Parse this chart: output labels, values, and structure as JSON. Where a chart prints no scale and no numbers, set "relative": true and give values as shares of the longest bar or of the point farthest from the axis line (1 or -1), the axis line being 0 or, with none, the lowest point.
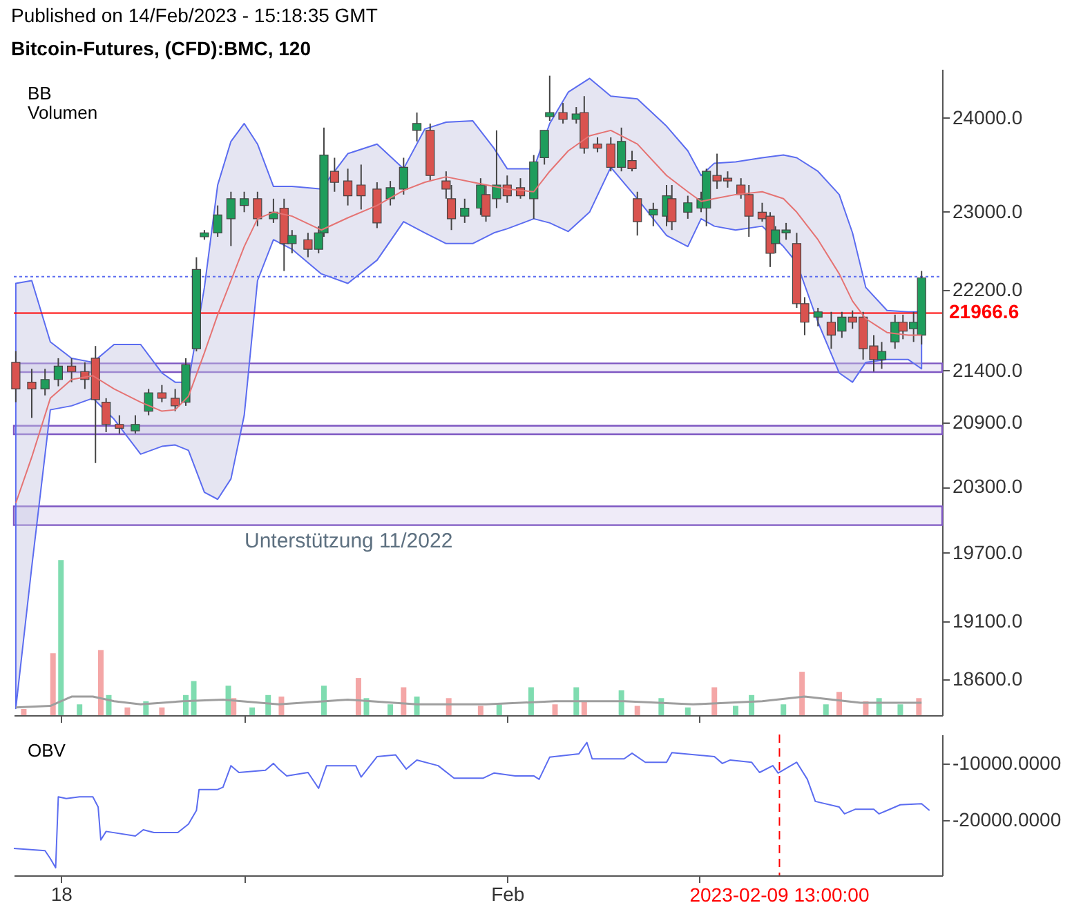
{
  "chart_data": [
    {
      "type": "candlestick",
      "title": "Bitcoin-Futures, (CFD):BMC, 120",
      "subtitle": "Published on 14/Feb/2023 - 15:18:35 GMT",
      "annotations": [
        "BB"
      ],
      "x": [
        "2023-01-16T14:00",
        "2023-01-17T02:00",
        "2023-01-17T12:00",
        "2023-01-17T22:00",
        "2023-01-18T08:00",
        "2023-01-18T18:00",
        "2023-01-19T02:00",
        "2023-01-19T10:00",
        "2023-01-19T20:00",
        "2023-01-20T08:00",
        "2023-01-20T18:00",
        "2023-01-21T04:00",
        "2023-01-21T14:00",
        "2023-01-21T22:00",
        "2023-01-22T06:00",
        "2023-01-22T12:00",
        "2023-01-22T22:00",
        "2023-01-23T08:00",
        "2023-01-23T18:00",
        "2023-01-24T04:00",
        "2023-01-24T16:00",
        "2023-01-25T00:00",
        "2023-01-25T06:00",
        "2023-01-25T18:00",
        "2023-01-26T02:00",
        "2023-01-26T06:00",
        "2023-01-26T14:00",
        "2023-01-27T00:00",
        "2023-01-27T10:00",
        "2023-01-27T22:00",
        "2023-01-28T08:00",
        "2023-01-28T18:00",
        "2023-01-29T04:00",
        "2023-01-29T14:00",
        "2023-01-30T02:00",
        "2023-01-30T06:00",
        "2023-01-30T16:00",
        "2023-01-31T04:00",
        "2023-01-31T08:00",
        "2023-01-31T16:00",
        "2023-02-01T00:00",
        "2023-02-01T10:00",
        "2023-02-01T20:00",
        "2023-02-02T04:00",
        "2023-02-02T08:00",
        "2023-02-02T18:00",
        "2023-02-03T04:00",
        "2023-02-03T10:00",
        "2023-02-03T20:00",
        "2023-02-04T06:00",
        "2023-02-04T14:00",
        "2023-02-04T22:00",
        "2023-02-05T02:00",
        "2023-02-05T14:00",
        "2023-02-06T00:00",
        "2023-02-06T04:00",
        "2023-02-06T16:00",
        "2023-02-07T02:00",
        "2023-02-07T06:00",
        "2023-02-07T14:00",
        "2023-02-07T22:00",
        "2023-02-08T08:00",
        "2023-02-08T14:00",
        "2023-02-09T00:00",
        "2023-02-09T06:00",
        "2023-02-09T10:00",
        "2023-02-09T18:00",
        "2023-02-10T02:00",
        "2023-02-10T08:00",
        "2023-02-10T18:00",
        "2023-02-11T04:00",
        "2023-02-11T12:00",
        "2023-02-11T20:00",
        "2023-02-12T04:00",
        "2023-02-12T12:00",
        "2023-02-12T18:00",
        "2023-02-13T04:00",
        "2023-02-13T10:00",
        "2023-02-13T18:00",
        "2023-02-14T00:00"
      ],
      "ohlc": [
        [
          21480,
          21590,
          21095,
          21222
        ],
        [
          21287,
          21417,
          20945,
          21222
        ],
        [
          21222,
          21417,
          21160,
          21313
        ],
        [
          21313,
          21520,
          21248,
          21443
        ],
        [
          21443,
          21520,
          21287,
          21390
        ],
        [
          21390,
          21480,
          21222,
          21313
        ],
        [
          21520,
          21640,
          20520,
          21120
        ],
        [
          21095,
          21133,
          20810,
          20883
        ],
        [
          20883,
          20970,
          20797,
          20846
        ],
        [
          20822,
          20970,
          20797,
          20883
        ],
        [
          21009,
          21222,
          20970,
          21185
        ],
        [
          21185,
          21260,
          21095,
          21133
        ],
        [
          21133,
          21222,
          21009,
          21060
        ],
        [
          21095,
          21520,
          21060,
          21456
        ],
        [
          21613,
          22530,
          21587,
          22405
        ],
        [
          22740,
          22810,
          22710,
          22781
        ],
        [
          22781,
          23066,
          22740,
          22967
        ],
        [
          22927,
          23210,
          22645,
          23137
        ],
        [
          23066,
          23210,
          22996,
          23137
        ],
        [
          23137,
          23210,
          22850,
          22927
        ],
        [
          22927,
          23137,
          22884,
          22996
        ],
        [
          23038,
          23137,
          22390,
          22670
        ],
        [
          22670,
          22810,
          22570,
          22753
        ],
        [
          22710,
          22781,
          22530,
          22612
        ],
        [
          22612,
          22850,
          22570,
          22781
        ],
        [
          22781,
          23896,
          22740,
          23600
        ],
        [
          23426,
          23571,
          23210,
          23310
        ],
        [
          23324,
          23454,
          23066,
          23168
        ],
        [
          23281,
          23498,
          23024,
          23168
        ],
        [
          23239,
          23310,
          22830,
          22884
        ],
        [
          23137,
          23324,
          23066,
          23253
        ],
        [
          23239,
          23571,
          23180,
          23469
        ],
        [
          23866,
          24060,
          23747,
          23940
        ],
        [
          23866,
          23940,
          23324,
          23382
        ],
        [
          23324,
          23426,
          23137,
          23239
        ],
        [
          23137,
          23281,
          22810,
          22927
        ],
        [
          22954,
          23137,
          22884,
          23038
        ],
        [
          23038,
          23353,
          22967,
          23281
        ],
        [
          23180,
          23281,
          22897,
          22954
        ],
        [
          23137,
          23866,
          23038,
          23281
        ],
        [
          23281,
          23382,
          23094,
          23168
        ],
        [
          23253,
          23353,
          23137,
          23168
        ],
        [
          23137,
          23600,
          22927,
          23527
        ],
        [
          23571,
          23866,
          23498,
          23866
        ],
        [
          24015,
          24466,
          23970,
          24060
        ],
        [
          24060,
          24165,
          23940,
          23985
        ],
        [
          23985,
          24120,
          23940,
          24045
        ],
        [
          24060,
          24240,
          23615,
          23674
        ],
        [
          23718,
          23790,
          23630,
          23674
        ],
        [
          23718,
          23790,
          23426,
          23469
        ],
        [
          23469,
          23896,
          23426,
          23747
        ],
        [
          23541,
          23645,
          23426,
          23454
        ],
        [
          23137,
          23210,
          22753,
          22897
        ],
        [
          22967,
          23094,
          22850,
          23024
        ],
        [
          22954,
          23281,
          22850,
          23168
        ],
        [
          23137,
          23281,
          22810,
          22897
        ],
        [
          22996,
          23168,
          22927,
          23094
        ],
        [
          23038,
          23210,
          22996,
          23137
        ],
        [
          23038,
          23454,
          22850,
          23426
        ],
        [
          23382,
          23615,
          23239,
          23324
        ],
        [
          23353,
          23426,
          23253,
          23324
        ],
        [
          23281,
          23353,
          23137,
          23180
        ],
        [
          23180,
          23281,
          22740,
          22954
        ],
        [
          22996,
          23094,
          22897,
          22927
        ],
        [
          22954,
          22996,
          22430,
          22570
        ],
        [
          22670,
          22850,
          22570,
          22810
        ],
        [
          22781,
          22884,
          22710,
          22810
        ],
        [
          22670,
          22781,
          22018,
          22060
        ],
        [
          22060,
          22125,
          21747,
          21875
        ],
        [
          21925,
          22018,
          21835,
          21978
        ],
        [
          21875,
          21978,
          21613,
          21747
        ],
        [
          21787,
          21978,
          21720,
          21925
        ],
        [
          21925,
          21992,
          21810,
          21875
        ],
        [
          21925,
          21978,
          21507,
          21613
        ],
        [
          21640,
          21747,
          21390,
          21507
        ],
        [
          21507,
          21680,
          21417,
          21587
        ],
        [
          21680,
          21950,
          21613,
          21875
        ],
        [
          21875,
          21950,
          21707,
          21787
        ],
        [
          21810,
          21978,
          21680,
          21875
        ],
        [
          21747,
          22390,
          21655,
          22320
        ]
      ],
      "series": [
        {
          "type": "line",
          "color": "#e57373",
          "x": [
            "2023-01-16T14:00",
            "2023-01-17T02:00",
            "2023-01-17T16:00",
            "2023-01-18T08:00",
            "2023-01-19T00:00",
            "2023-01-19T16:00",
            "2023-01-20T12:00",
            "2023-01-21T04:00",
            "2023-01-21T14:00",
            "2023-01-22T00:00",
            "2023-01-22T12:00",
            "2023-01-22T22:00",
            "2023-01-23T08:00",
            "2023-01-23T18:00",
            "2023-01-24T04:00",
            "2023-01-24T16:00",
            "2023-01-25T06:00",
            "2023-01-26T04:00",
            "2023-01-27T00:00",
            "2023-01-27T22:00",
            "2023-01-28T18:00",
            "2023-01-29T10:00",
            "2023-01-30T02:00",
            "2023-01-30T22:00",
            "2023-01-31T14:00",
            "2023-02-01T00:00",
            "2023-02-01T20:00",
            "2023-02-02T08:00",
            "2023-02-02T22:00",
            "2023-02-03T14:00",
            "2023-02-04T06:00",
            "2023-02-05T02:00",
            "2023-02-06T00:00",
            "2023-02-06T16:00",
            "2023-02-07T02:00",
            "2023-02-07T12:00",
            "2023-02-08T04:00",
            "2023-02-09T00:00",
            "2023-02-09T16:00",
            "2023-02-10T02:00",
            "2023-02-10T18:00",
            "2023-02-11T10:00",
            "2023-02-11T20:00",
            "2023-02-12T06:00",
            "2023-02-12T22:00",
            "2023-02-13T14:00",
            "2023-02-14T00:00"
          ],
          "values": [
            20150,
            20575,
            21133,
            21313,
            21350,
            21222,
            21095,
            21009,
            21022,
            21151,
            21573,
            21950,
            22292,
            22640,
            22927,
            22996,
            22954,
            22810,
            22937,
            23066,
            23224,
            23310,
            23368,
            23310,
            23266,
            23239,
            23210,
            23426,
            23645,
            23807,
            23866,
            23718,
            23382,
            23210,
            23108,
            23137,
            23180,
            23210,
            23137,
            22996,
            22710,
            22361,
            22086,
            21909,
            21773,
            21747,
            21747
          ],
          "upper": [
            22264,
            22292,
            21680,
            21520,
            21480,
            21655,
            21655,
            21377,
            21287,
            21287,
            22223,
            23281,
            23747,
            23940,
            23718,
            23266,
            23266,
            23239,
            23615,
            23718,
            23454,
            23881,
            23955,
            23970,
            23674,
            23454,
            23454,
            23940,
            24284,
            24436,
            24240,
            24210,
            23911,
            23645,
            23382,
            23513,
            23527,
            23571,
            23600,
            23571,
            23426,
            23180,
            22781,
            22223,
            21992,
            21978,
            21978
          ],
          "lower": [
            18356,
            19573,
            21022,
            21060,
            21133,
            20932,
            20603,
            20676,
            20689,
            20638,
            20249,
            20185,
            20373,
            20970,
            22292,
            22710,
            22612,
            22361,
            22264,
            22500,
            22897,
            22781,
            22670,
            22670,
            22781,
            22823,
            22927,
            22884,
            22795,
            22996,
            23469,
            23137,
            22753,
            22640,
            22927,
            22850,
            22810,
            22850,
            22640,
            22473,
            21875,
            21377,
            21287,
            21480,
            21507,
            21507,
            21417
          ]
        }
      ],
      "bands": [
        {
          "axis": "y",
          "from": 21385,
          "to": 21470,
          "color": "#7e57c2"
        },
        {
          "axis": "y",
          "from": 20790,
          "to": 20870,
          "color": "#7e57c2"
        },
        {
          "axis": "y",
          "from": 19950,
          "to": 20120,
          "color": "#7e57c2",
          "label": "Unterstützung 11/2022"
        }
      ],
      "ref_lines": [
        {
          "axis": "y",
          "value": 22333,
          "color": "#5b6cf0",
          "line_style": "dotted"
        },
        {
          "axis": "y",
          "value": 21966.6,
          "label": "21966.6",
          "color": "#ff0000",
          "line_style": "solid"
        }
      ],
      "xlim": [
        "2023-01-16T12:30",
        "2023-02-14T15:30"
      ],
      "xticks": [
        {
          "value": "2023-01-18",
          "label": null
        },
        {
          "value": "2023-01-23T18:00",
          "label": null
        },
        {
          "value": "2023-02-01",
          "label": null
        },
        {
          "value": "2023-02-07",
          "label": null
        }
      ],
      "ylim": [
        18300,
        24540
      ],
      "log": true,
      "tick_labels": "y",
      "yticks": [
        {
          "value": 18600,
          "label": "18600.0"
        },
        {
          "value": 19100,
          "label": "19100.0"
        },
        {
          "value": 19700,
          "label": "19700.0"
        },
        {
          "value": 20300,
          "label": "20300.0"
        },
        {
          "value": 20900,
          "label": "20900.0"
        },
        {
          "value": 21400,
          "label": "21400.0"
        },
        {
          "value": 22200,
          "label": "22200.0"
        },
        {
          "value": 23000,
          "label": "23000.0"
        },
        {
          "value": 24000,
          "label": "24000.0"
        }
      ]
    },
    {
      "type": "bar",
      "relative": true,
      "title": "Volumen",
      "xlim": [
        "2023-01-16T12:30",
        "2023-02-14T15:30"
      ],
      "xticks": [
        {
          "value": "2023-01-18",
          "label": null
        },
        {
          "value": "2023-01-23T18:00",
          "label": null
        },
        {
          "value": "2023-02-01",
          "label": null
        },
        {
          "value": "2023-02-07",
          "label": null
        }
      ],
      "tick_labels": false,
      "series": [
        {
          "type": "bar",
          "x": [
            "2023-01-16T20:00",
            "2023-01-17T18:00",
            "2023-01-18T00:00",
            "2023-01-18T14:00",
            "2023-01-19T06:00",
            "2023-01-19T12:00",
            "2023-01-20T02:00",
            "2023-01-20T16:00",
            "2023-01-21T04:00",
            "2023-01-21T22:00",
            "2023-01-22T04:00",
            "2023-01-23T06:00",
            "2023-01-23T10:00",
            "2023-01-24T00:00",
            "2023-01-24T12:00",
            "2023-01-24T22:00",
            "2023-01-26T06:00",
            "2023-01-27T08:00",
            "2023-01-27T14:00",
            "2023-01-28T08:00",
            "2023-01-28T18:00",
            "2023-01-29T04:00",
            "2023-01-30T04:00",
            "2023-01-31T04:00",
            "2023-01-31T18:00",
            "2023-02-01T18:00",
            "2023-02-02T12:00",
            "2023-02-03T04:00",
            "2023-02-03T10:00",
            "2023-02-04T14:00",
            "2023-02-05T02:00",
            "2023-02-05T20:00",
            "2023-02-06T16:00",
            "2023-02-07T12:00",
            "2023-02-08T04:00",
            "2023-02-08T16:00",
            "2023-02-09T16:00",
            "2023-02-10T06:00",
            "2023-02-11T00:00",
            "2023-02-11T10:00",
            "2023-02-12T06:00",
            "2023-02-12T16:00",
            "2023-02-13T08:00",
            "2023-02-13T22:00"
          ],
          "values": [
            0.04,
            0.4,
            1.0,
            0.07,
            0.42,
            0.13,
            0.05,
            0.09,
            0.05,
            0.13,
            0.22,
            0.19,
            0.11,
            0.05,
            0.13,
            0.12,
            0.19,
            0.24,
            0.11,
            0.07,
            0.18,
            0.12,
            0.11,
            0.06,
            0.07,
            0.18,
            0.07,
            0.18,
            0.09,
            0.16,
            0.06,
            0.11,
            0.05,
            0.18,
            0.06,
            0.13,
            0.07,
            0.28,
            0.07,
            0.15,
            0.09,
            0.11,
            0.07,
            0.11
          ],
          "colors": [
            "#f4a6a6",
            "#f4a6a6",
            "#7fdcb0",
            "#7fdcb0",
            "#f4a6a6",
            "#7fdcb0",
            "#f4a6a6",
            "#7fdcb0",
            "#f4a6a6",
            "#7fdcb0",
            "#7fdcb0",
            "#7fdcb0",
            "#f4a6a6",
            "#7fdcb0",
            "#7fdcb0",
            "#f4a6a6",
            "#7fdcb0",
            "#f4a6a6",
            "#7fdcb0",
            "#7fdcb0",
            "#f4a6a6",
            "#7fdcb0",
            "#f4a6a6",
            "#f4a6a6",
            "#7fdcb0",
            "#7fdcb0",
            "#f4a6a6",
            "#7fdcb0",
            "#f4a6a6",
            "#7fdcb0",
            "#f4a6a6",
            "#7fdcb0",
            "#7fdcb0",
            "#f4a6a6",
            "#7fdcb0",
            "#7fdcb0",
            "#7fdcb0",
            "#f4a6a6",
            "#7fdcb0",
            "#f4a6a6",
            "#f4a6a6",
            "#7fdcb0",
            "#7fdcb0",
            "#f4a6a6"
          ]
        },
        {
          "type": "line",
          "color": "#9e9e9e",
          "x": [
            "2023-01-16T14:00",
            "2023-01-17T16:00",
            "2023-01-18T08:00",
            "2023-01-19T00:00",
            "2023-01-19T16:00",
            "2023-01-20T12:00",
            "2023-01-21T20:00",
            "2023-01-23T02:00",
            "2023-01-24T20:00",
            "2023-01-27T00:00",
            "2023-01-29T04:00",
            "2023-01-31T08:00",
            "2023-02-02T12:00",
            "2023-02-04T16:00",
            "2023-02-06T20:00",
            "2023-02-09T00:00",
            "2023-02-10T08:00",
            "2023-02-12T02:00",
            "2023-02-14T00:00"
          ],
          "values": [
            0.05,
            0.06,
            0.12,
            0.12,
            0.09,
            0.07,
            0.09,
            0.1,
            0.07,
            0.1,
            0.07,
            0.07,
            0.09,
            0.09,
            0.07,
            0.09,
            0.12,
            0.08,
            0.08
          ]
        }
      ]
    },
    {
      "type": "line",
      "title": "OBV",
      "color": "#5b6cf0",
      "x": [
        "2023-01-16T12:30",
        "2023-01-17T12:00",
        "2023-01-17T16:00",
        "2023-01-17T20:00",
        "2023-01-17T22:00",
        "2023-01-18T04:00",
        "2023-01-18T14:00",
        "2023-01-19T00:00",
        "2023-01-19T04:00",
        "2023-01-19T06:00",
        "2023-01-19T10:00",
        "2023-01-20T08:00",
        "2023-01-20T14:00",
        "2023-01-20T22:00",
        "2023-01-21T16:00",
        "2023-01-22T00:00",
        "2023-01-22T06:00",
        "2023-01-22T08:00",
        "2023-01-22T22:00",
        "2023-01-23T02:00",
        "2023-01-23T08:00",
        "2023-01-23T14:00",
        "2023-01-24T10:00",
        "2023-01-24T16:00",
        "2023-01-24T20:00",
        "2023-01-25T02:00",
        "2023-01-25T18:00",
        "2023-01-26T02:00",
        "2023-01-26T08:00",
        "2023-01-27T06:00",
        "2023-01-27T10:00",
        "2023-01-27T22:00",
        "2023-01-28T12:00",
        "2023-01-28T20:00",
        "2023-01-29T04:00",
        "2023-01-29T20:00",
        "2023-01-30T08:00",
        "2023-01-31T06:00",
        "2023-01-31T14:00",
        "2023-02-01T06:00",
        "2023-02-01T20:00",
        "2023-02-02T00:00",
        "2023-02-02T08:00",
        "2023-02-03T06:00",
        "2023-02-03T12:00",
        "2023-02-03T16:00",
        "2023-02-04T16:00",
        "2023-02-04T22:00",
        "2023-02-05T08:00",
        "2023-02-06T00:00",
        "2023-02-06T04:00",
        "2023-02-07T12:00",
        "2023-02-07T18:00",
        "2023-02-08T00:00",
        "2023-02-08T16:00",
        "2023-02-08T22:00",
        "2023-02-09T08:00",
        "2023-02-09T12:00",
        "2023-02-10T02:00",
        "2023-02-10T10:00",
        "2023-02-10T16:00",
        "2023-02-11T10:00",
        "2023-02-11T14:00",
        "2023-02-11T22:00",
        "2023-02-12T12:00",
        "2023-02-12T16:00",
        "2023-02-12T22:00",
        "2023-02-13T08:00",
        "2023-02-14T00:00",
        "2023-02-14T06:00"
      ],
      "values": [
        -25000,
        -25400,
        -26800,
        -28400,
        -15900,
        -16200,
        -15900,
        -15900,
        -17700,
        -23500,
        -22000,
        -22800,
        -21700,
        -22200,
        -22200,
        -20700,
        -18300,
        -14600,
        -14600,
        -14200,
        -10400,
        -11600,
        -11200,
        -10000,
        -11000,
        -12200,
        -11600,
        -14400,
        -10400,
        -10400,
        -12400,
        -8800,
        -8500,
        -11000,
        -9400,
        -10400,
        -12600,
        -12600,
        -11700,
        -12200,
        -12200,
        -12800,
        -8900,
        -8300,
        -6300,
        -9200,
        -9200,
        -8200,
        -9800,
        -9800,
        -8100,
        -8800,
        -10000,
        -9400,
        -9800,
        -11600,
        -10400,
        -11700,
        -9800,
        -12800,
        -16700,
        -17700,
        -18900,
        -18100,
        -18100,
        -18900,
        -18300,
        -17300,
        -17100,
        -18300
      ],
      "xlim": [
        "2023-01-16T12:30",
        "2023-02-14T15:30"
      ],
      "xticks": [
        {
          "value": "2023-01-18",
          "label": "18"
        },
        {
          "value": "2023-01-23T18:00",
          "label": null
        },
        {
          "value": "2023-02-01",
          "label": "Feb"
        },
        {
          "value": "2023-02-07",
          "label": null
        }
      ],
      "ylim": [
        -29750,
        -4900
      ],
      "yticks": [
        {
          "value": -10000,
          "label": "-10000.0000"
        },
        {
          "value": -20000,
          "label": "-20000.0000"
        }
      ],
      "ref_lines": [
        {
          "axis": "x",
          "value": "2023-02-09T13:00",
          "label": "2023-02-09 13:00:00",
          "color": "#ff0000",
          "line_style": "dashed"
        }
      ]
    }
  ]
}
